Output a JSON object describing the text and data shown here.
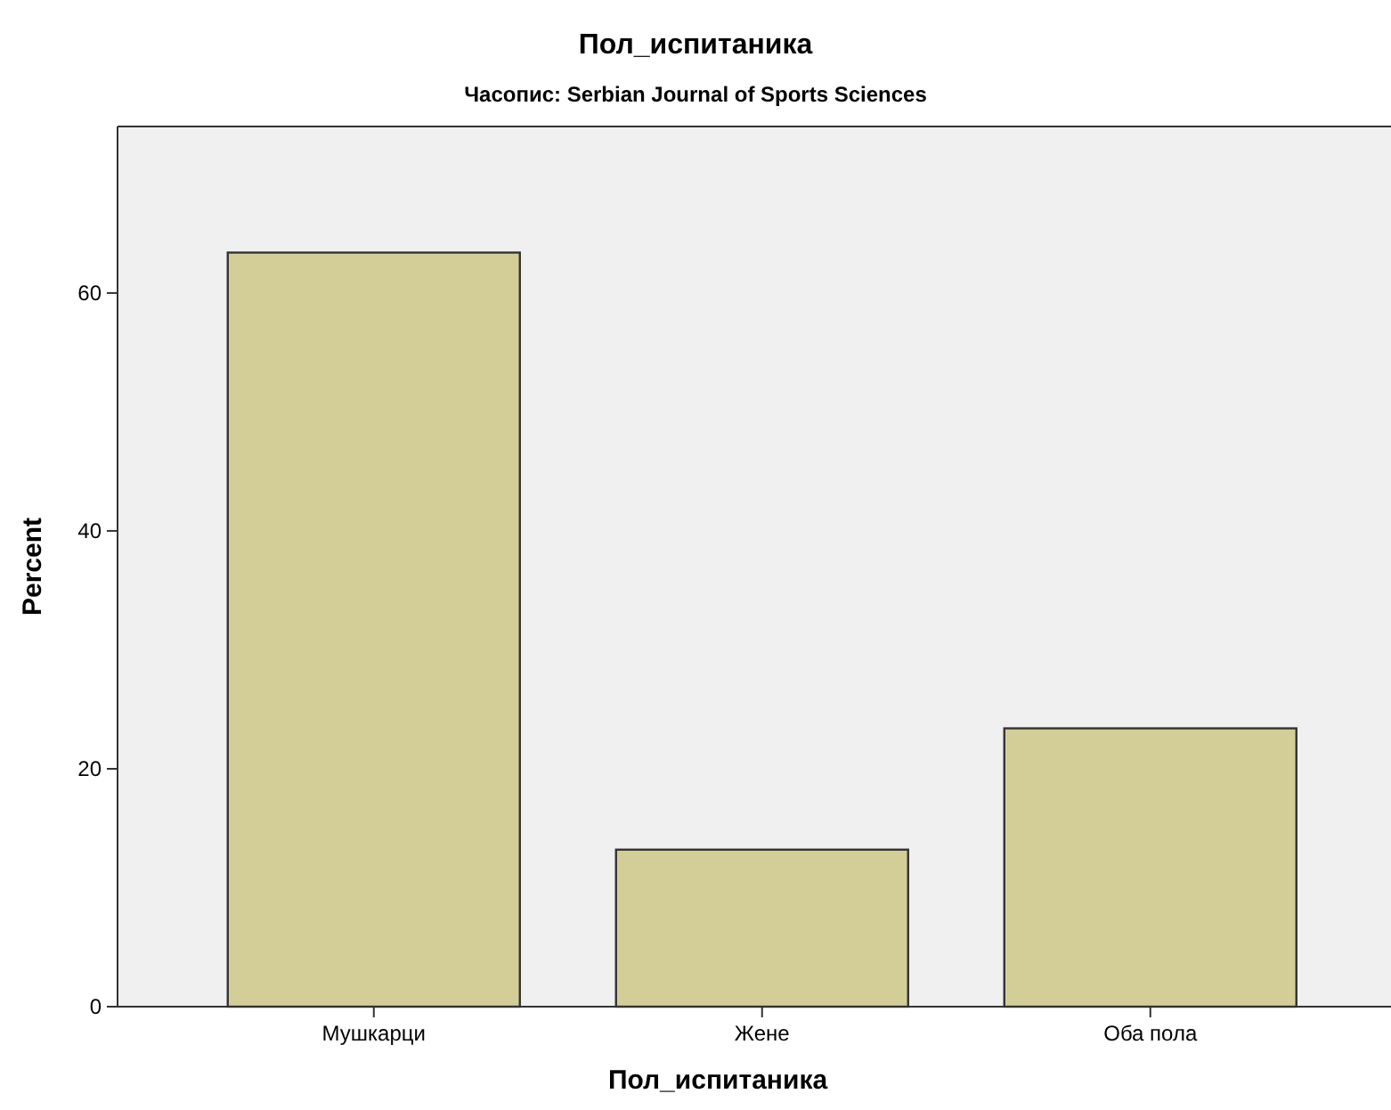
{
  "chart_data": {
    "type": "bar",
    "title": "Пол_испитаника",
    "subtitle": "Часопис: Serbian Journal of Sports Sciences",
    "xlabel": "Пол_испитаника",
    "ylabel": "Percent",
    "categories": [
      "Мушкарци",
      "Жене",
      "Оба пола"
    ],
    "values": [
      63.4,
      13.2,
      23.4
    ],
    "color": "#d3ce97",
    "ylim": [
      0,
      74
    ],
    "yticks": [
      0,
      20,
      40,
      60
    ],
    "grid": false
  }
}
